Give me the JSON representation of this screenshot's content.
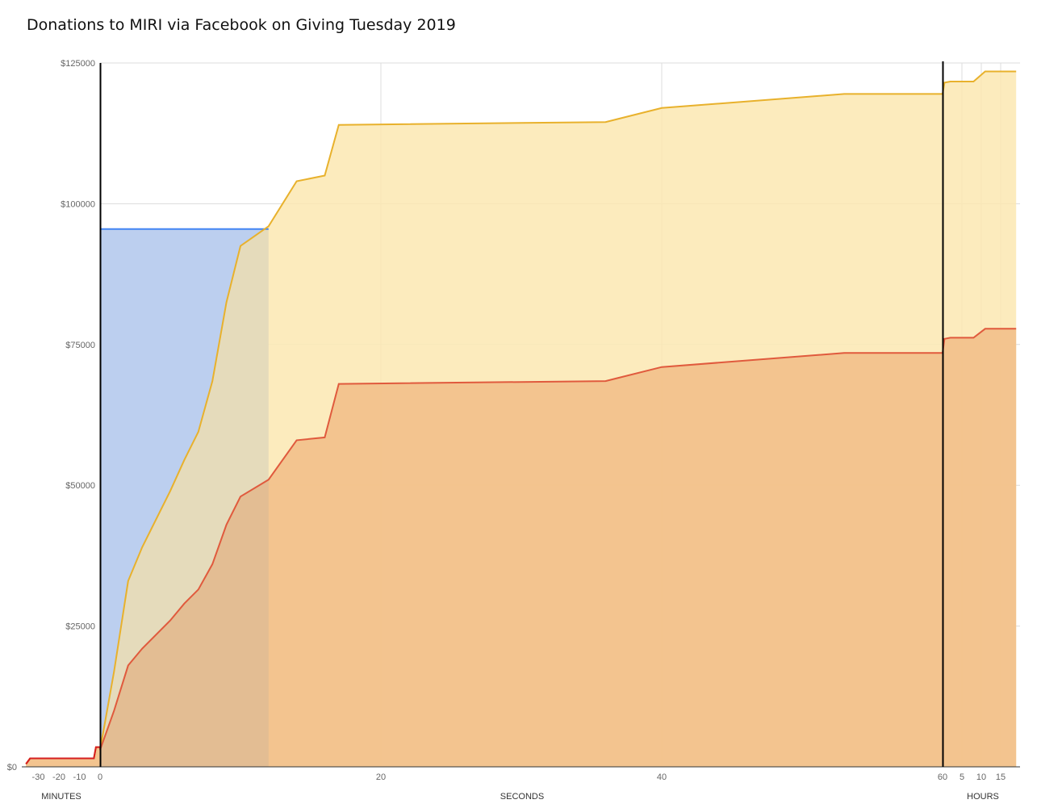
{
  "title": "Donations to MIRI via Facebook on Giving Tuesday 2019",
  "chart_data": {
    "type": "area",
    "title": "Donations to MIRI via Facebook on Giving Tuesday 2019",
    "ylim": [
      0,
      125000
    ],
    "y_ticks": [
      "$0",
      "$25000",
      "$50000",
      "$75000",
      "$100000",
      "$125000"
    ],
    "grid": true,
    "legend": "none",
    "x_sections": [
      {
        "label": "MINUTES",
        "ticks": [
          "-30",
          "-20",
          "-10",
          "0"
        ]
      },
      {
        "label": "SECONDS",
        "ticks": [
          "20",
          "40",
          "60"
        ]
      },
      {
        "label": "HOURS",
        "ticks": [
          "5",
          "10",
          "15"
        ]
      }
    ],
    "series": [
      {
        "color": "#4285f4",
        "fill": "#c5d9f7",
        "x_seconds": [
          0,
          12
        ],
        "values": [
          95500,
          95500
        ]
      },
      {
        "color": "#e8b12c",
        "fill": "#fbe8b2",
        "x_seconds": [
          0,
          1,
          2,
          3,
          5,
          6,
          7,
          8,
          9,
          10,
          12,
          14,
          16,
          17,
          36,
          40,
          53,
          60
        ],
        "values": [
          3000,
          17000,
          33000,
          39000,
          49000,
          54500,
          59500,
          68500,
          82500,
          92500,
          96000,
          104000,
          105000,
          114000,
          114500,
          117000,
          119500,
          119500
        ],
        "minutes_before": [
          {
            "x": -36,
            "y": 500
          },
          {
            "x": -34,
            "y": 1500
          },
          {
            "x": -3,
            "y": 1500
          },
          {
            "x": -2,
            "y": 3500
          },
          {
            "x": 0,
            "y": 3500
          }
        ],
        "hours_after": [
          {
            "x": 0.5,
            "y": 121500
          },
          {
            "x": 2,
            "y": 121700
          },
          {
            "x": 8,
            "y": 121700
          },
          {
            "x": 11,
            "y": 123500
          },
          {
            "x": 19,
            "y": 123500
          }
        ]
      },
      {
        "color": "#e05a3d",
        "fill": "#f2c08a",
        "x_seconds": [
          0,
          1,
          2,
          3,
          5,
          6,
          7,
          8,
          9,
          10,
          12,
          14,
          16,
          17,
          36,
          40,
          53,
          60
        ],
        "values": [
          3000,
          10000,
          18000,
          21000,
          26000,
          29000,
          31500,
          36000,
          43000,
          48000,
          51000,
          58000,
          58500,
          68000,
          68500,
          71000,
          73500,
          73500
        ],
        "minutes_before": [
          {
            "x": -36,
            "y": 500
          },
          {
            "x": -34,
            "y": 1500
          },
          {
            "x": -3,
            "y": 1500
          },
          {
            "x": -2,
            "y": 3500
          },
          {
            "x": 0,
            "y": 3500
          }
        ],
        "hours_after": [
          {
            "x": 0.5,
            "y": 76000
          },
          {
            "x": 2,
            "y": 76200
          },
          {
            "x": 8,
            "y": 76200
          },
          {
            "x": 11,
            "y": 77800
          },
          {
            "x": 19,
            "y": 77800
          }
        ]
      }
    ]
  }
}
